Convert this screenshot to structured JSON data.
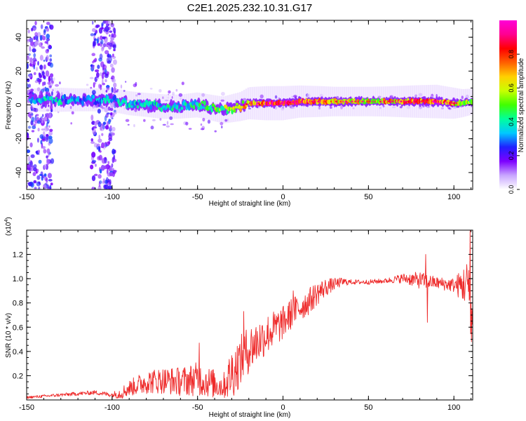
{
  "chart_data": [
    {
      "type": "heatmap",
      "title": "C2E1.2025.232.10.31.G17",
      "xlabel": "Height of straight line (km)",
      "ylabel": "Frequency (Hz)",
      "xlim": [
        -150,
        111
      ],
      "ylim": [
        -50,
        50
      ],
      "xticks": [
        -150,
        -100,
        -50,
        0,
        50,
        100
      ],
      "yticks": [
        -40,
        -20,
        0,
        20,
        40
      ],
      "colorbar": {
        "label": "Normalized spectral amplitude",
        "range": [
          0,
          1
        ],
        "ticks": [
          "0.0",
          "0.2",
          "0.4",
          "0.6",
          "0.8"
        ],
        "colors": [
          "#ffffff",
          "#c9a6ff",
          "#7d00ff",
          "#2020ff",
          "#00c8ff",
          "#00ff9c",
          "#40ff00",
          "#c8ff00",
          "#ffd000",
          "#ff6000",
          "#ff0000",
          "#ff0090",
          "#ff00d8"
        ]
      },
      "ridge": {
        "x": [
          -150,
          -140,
          -130,
          -120,
          -110,
          -100,
          -90,
          -80,
          -70,
          -60,
          -50,
          -40,
          -35,
          -30,
          -25,
          -20,
          -10,
          0,
          10,
          20,
          30,
          40,
          50,
          60,
          70,
          80,
          90,
          100,
          105,
          111
        ],
        "freq": [
          3,
          3,
          3,
          3,
          3,
          3,
          1,
          0,
          -1,
          -1,
          0,
          -2,
          -3,
          -2,
          -1,
          1,
          1,
          1,
          2,
          2,
          2,
          2,
          2,
          2,
          2,
          2,
          2,
          1,
          1,
          2
        ],
        "amplitude": [
          0.25,
          0.35,
          0.35,
          0.3,
          0.3,
          0.35,
          0.35,
          0.35,
          0.38,
          0.35,
          0.4,
          0.45,
          0.5,
          0.55,
          0.6,
          0.75,
          0.85,
          0.85,
          0.75,
          0.7,
          0.62,
          0.62,
          0.62,
          0.65,
          0.72,
          0.78,
          0.82,
          0.7,
          0.55,
          0.45
        ]
      },
      "noise_bands_x": [
        [
          -150,
          -135
        ],
        [
          -112,
          -98
        ]
      ]
    },
    {
      "type": "line",
      "title": "",
      "xlabel": "Height of straight line (km)",
      "ylabel": "SNR (10 * v/v)",
      "scale_label": "(x10",
      "scale_exponent": "4",
      "xlim": [
        -150,
        111
      ],
      "ylim": [
        0,
        1.4
      ],
      "xticks": [
        -150,
        -100,
        -50,
        0,
        50,
        100
      ],
      "yticks": [
        0.2,
        0.4,
        0.6,
        0.8,
        1.0,
        1.2
      ],
      "series_color": "#ee2a2a",
      "trend": {
        "x": [
          -150,
          -130,
          -120,
          -110,
          -100,
          -95,
          -90,
          -80,
          -70,
          -60,
          -50,
          -45,
          -40,
          -35,
          -30,
          -25,
          -20,
          -15,
          -10,
          -5,
          0,
          5,
          10,
          15,
          20,
          25,
          30,
          35,
          40,
          50,
          60,
          70,
          80,
          90,
          100,
          105,
          108,
          111
        ],
        "y": [
          0.02,
          0.04,
          0.05,
          0.06,
          0.04,
          0.05,
          0.09,
          0.14,
          0.15,
          0.14,
          0.16,
          0.14,
          0.12,
          0.1,
          0.2,
          0.3,
          0.4,
          0.46,
          0.52,
          0.57,
          0.62,
          0.7,
          0.75,
          0.8,
          0.87,
          0.92,
          0.95,
          0.97,
          0.97,
          0.97,
          0.98,
          1.0,
          0.98,
          0.96,
          0.94,
          0.93,
          0.95,
          0.6
        ]
      },
      "noise_amplitude": {
        "x": [
          -150,
          -100,
          -95,
          -80,
          -60,
          -50,
          -40,
          -35,
          -30,
          -20,
          0,
          20,
          30,
          40,
          60,
          70,
          80,
          90,
          100,
          111
        ],
        "amp": [
          0.01,
          0.02,
          0.05,
          0.1,
          0.12,
          0.14,
          0.12,
          0.1,
          0.22,
          0.2,
          0.14,
          0.1,
          0.05,
          0.02,
          0.02,
          0.04,
          0.07,
          0.05,
          0.06,
          0.25
        ]
      },
      "spikes": [
        {
          "x": -49,
          "y": 0.47
        },
        {
          "x": -23,
          "y": 0.73
        },
        {
          "x": 6,
          "y": 0.9
        },
        {
          "x": 83.5,
          "y": 1.2
        },
        {
          "x": 84.5,
          "y": 0.64
        },
        {
          "x": 109.5,
          "y": 1.4
        },
        {
          "x": 110.2,
          "y": 0.48
        }
      ]
    }
  ]
}
